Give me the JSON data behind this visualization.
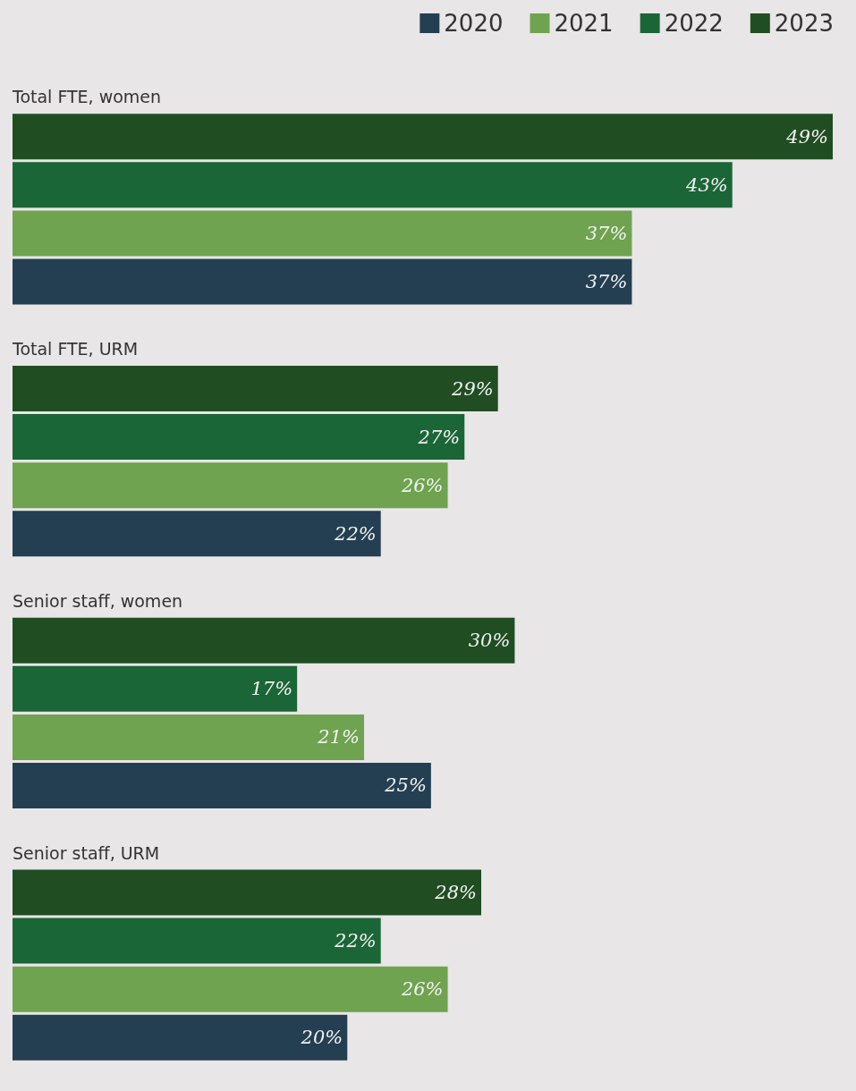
{
  "chart_data": {
    "type": "bar",
    "orientation": "horizontal",
    "categories": [
      "Total FTE, women",
      "Total FTE, URM",
      "Senior staff, women",
      "Senior staff, URM"
    ],
    "xlim": [
      0,
      49
    ],
    "series": [
      {
        "name": "2020",
        "color": "#243f52",
        "values": [
          37,
          22,
          25,
          20
        ],
        "value_labels": [
          "37%",
          "22%",
          "25%",
          "20%"
        ]
      },
      {
        "name": "2021",
        "color": "#6fa34f",
        "values": [
          37,
          26,
          21,
          26
        ],
        "value_labels": [
          "37%",
          "26%",
          "21%",
          "26%"
        ]
      },
      {
        "name": "2022",
        "color": "#1b6636",
        "values": [
          43,
          27,
          17,
          22
        ],
        "value_labels": [
          "43%",
          "27%",
          "17%",
          "22%"
        ]
      },
      {
        "name": "2023",
        "color": "#204d22",
        "values": [
          49,
          29,
          30,
          28
        ],
        "value_labels": [
          "49%",
          "29%",
          "30%",
          "28%"
        ]
      }
    ],
    "legend": "top right"
  }
}
